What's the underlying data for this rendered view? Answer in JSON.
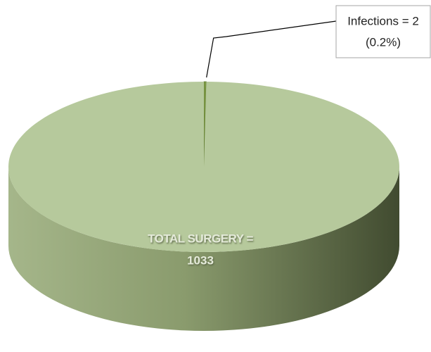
{
  "chart_data": {
    "type": "pie",
    "categories": [
      "Infections",
      "TOTAL SURGERY"
    ],
    "values": [
      2,
      1033
    ],
    "labels": [
      [
        "Infections = 2",
        "(0.2%)"
      ],
      [
        "TOTAL SURGERY =",
        "1033"
      ]
    ],
    "colors": [
      "#7d9a45",
      "#b6c99c"
    ],
    "three_d": true
  }
}
